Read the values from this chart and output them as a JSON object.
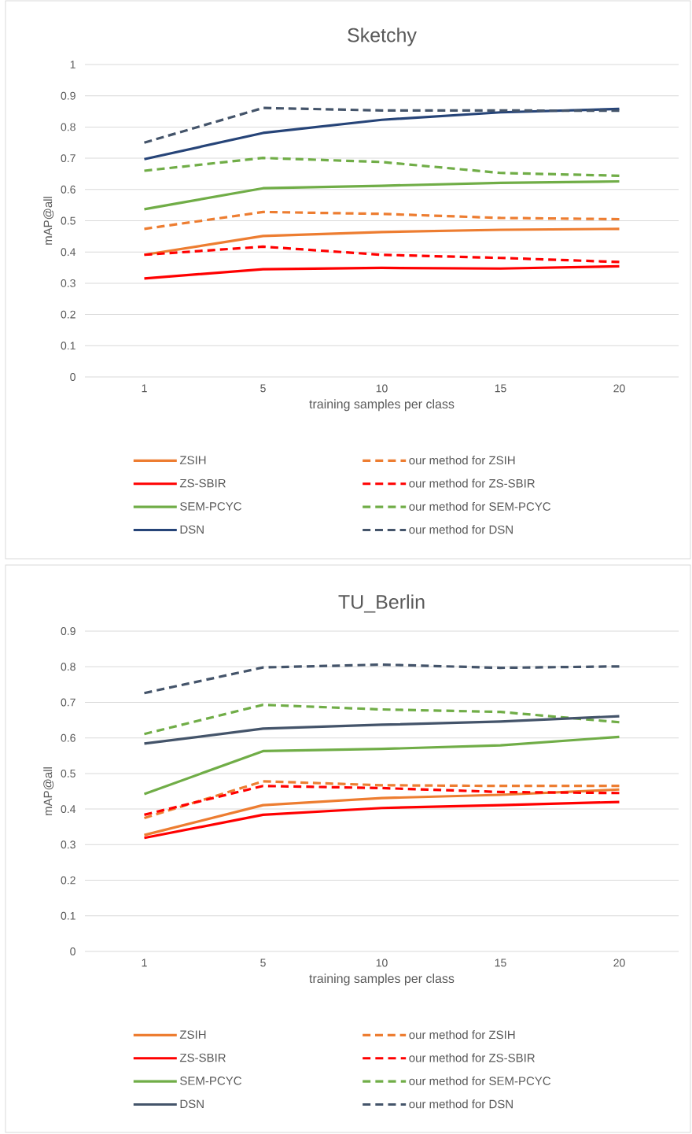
{
  "chart_data": [
    {
      "type": "line",
      "title": "Sketchy",
      "xlabel": "training samples per class",
      "ylabel": "mAP@all",
      "categories": [
        "1",
        "5",
        "10",
        "15",
        "20"
      ],
      "ylim": [
        0,
        1
      ],
      "yticks": [
        0,
        0.1,
        0.2,
        0.3,
        0.4,
        0.5,
        0.6,
        0.7,
        0.8,
        0.9,
        1
      ],
      "grid": "y",
      "legend": "bottom",
      "series": [
        {
          "name": "ZSIH",
          "color": "#ed7d31",
          "line_style": "solid",
          "values": [
            0.391,
            0.451,
            0.464,
            0.471,
            0.474
          ]
        },
        {
          "name": "our method for ZSIH",
          "color": "#ed7d31",
          "line_style": "dashed",
          "values": [
            0.474,
            0.528,
            0.522,
            0.509,
            0.505
          ]
        },
        {
          "name": "ZS-SBIR",
          "color": "#ff0000",
          "line_style": "solid",
          "values": [
            0.315,
            0.345,
            0.349,
            0.347,
            0.354
          ]
        },
        {
          "name": "our method for ZS-SBIR",
          "color": "#ff0000",
          "line_style": "dashed",
          "values": [
            0.391,
            0.417,
            0.391,
            0.381,
            0.368
          ]
        },
        {
          "name": "SEM-PCYC",
          "color": "#70ad47",
          "line_style": "solid",
          "values": [
            0.537,
            0.604,
            0.612,
            0.621,
            0.626
          ]
        },
        {
          "name": "our method for SEM-PCYC",
          "color": "#70ad47",
          "line_style": "dashed",
          "values": [
            0.66,
            0.701,
            0.688,
            0.653,
            0.644
          ]
        },
        {
          "name": "DSN",
          "color": "#264478",
          "line_style": "solid",
          "values": [
            0.697,
            0.781,
            0.823,
            0.847,
            0.858
          ]
        },
        {
          "name": "our method for DSN",
          "color": "#44546a",
          "line_style": "dashed",
          "values": [
            0.75,
            0.861,
            0.853,
            0.853,
            0.852
          ]
        }
      ]
    },
    {
      "type": "line",
      "title": "TU_Berlin",
      "xlabel": "training samples per class",
      "ylabel": "mAP@all",
      "categories": [
        "1",
        "5",
        "10",
        "15",
        "20"
      ],
      "ylim": [
        0,
        0.9
      ],
      "yticks": [
        0,
        0.1,
        0.2,
        0.3,
        0.4,
        0.5,
        0.6,
        0.7,
        0.8,
        0.9
      ],
      "grid": "y",
      "legend": "bottom",
      "series": [
        {
          "name": "ZSIH",
          "color": "#ed7d31",
          "line_style": "solid",
          "values": [
            0.327,
            0.411,
            0.431,
            0.44,
            0.455
          ]
        },
        {
          "name": "our method for ZSIH",
          "color": "#ed7d31",
          "line_style": "dashed",
          "values": [
            0.375,
            0.478,
            0.467,
            0.465,
            0.465
          ]
        },
        {
          "name": "ZS-SBIR",
          "color": "#ff0000",
          "line_style": "solid",
          "values": [
            0.319,
            0.384,
            0.403,
            0.411,
            0.42
          ]
        },
        {
          "name": "our method for ZS-SBIR",
          "color": "#ff0000",
          "line_style": "dashed",
          "values": [
            0.384,
            0.465,
            0.459,
            0.448,
            0.445
          ]
        },
        {
          "name": "SEM-PCYC",
          "color": "#70ad47",
          "line_style": "solid",
          "values": [
            0.442,
            0.563,
            0.569,
            0.579,
            0.603
          ]
        },
        {
          "name": "our method for SEM-PCYC",
          "color": "#70ad47",
          "line_style": "dashed",
          "values": [
            0.611,
            0.693,
            0.68,
            0.673,
            0.644
          ]
        },
        {
          "name": "DSN",
          "color": "#44546a",
          "line_style": "solid",
          "values": [
            0.584,
            0.626,
            0.637,
            0.646,
            0.661
          ]
        },
        {
          "name": "our method for DSN",
          "color": "#44546a",
          "line_style": "dashed",
          "values": [
            0.726,
            0.798,
            0.806,
            0.797,
            0.801
          ]
        }
      ]
    }
  ]
}
